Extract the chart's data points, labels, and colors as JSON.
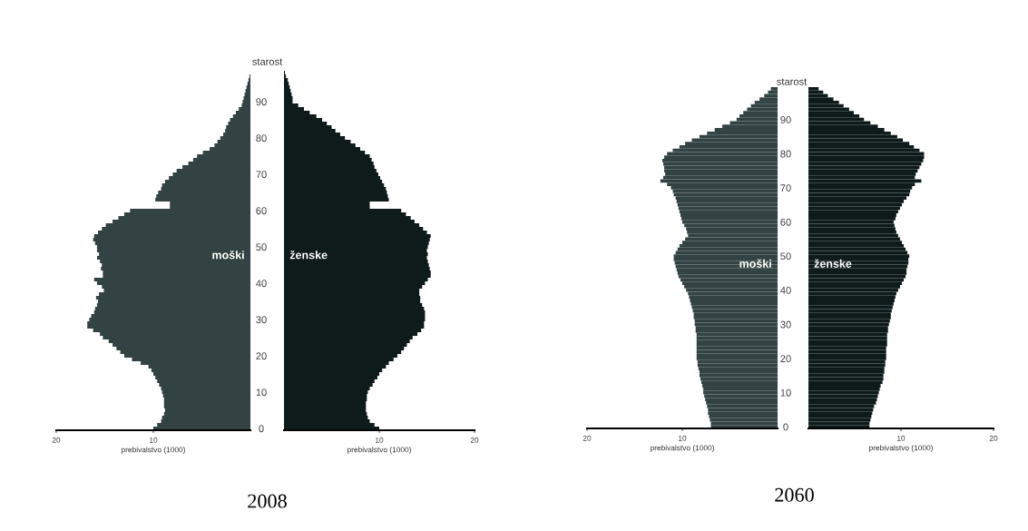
{
  "chart_data": [
    {
      "type": "bar",
      "orientation": "horizontal",
      "title": "2008",
      "xlabel": "prebivalstvo (1000)",
      "tick_labels": "x",
      "xlim": [
        20,
        0
      ],
      "xticks": [
        20,
        10
      ],
      "categories": [
        null,
        null,
        null,
        null,
        null,
        null,
        null,
        null,
        null,
        "90",
        null,
        null,
        null,
        null,
        null,
        null,
        null,
        null,
        null,
        "80",
        null,
        null,
        null,
        null,
        null,
        null,
        null,
        null,
        null,
        "70",
        null,
        null,
        null,
        null,
        null,
        null,
        null,
        null,
        null,
        "60",
        null,
        null,
        null,
        null,
        null,
        null,
        null,
        null,
        null,
        "50",
        null,
        null,
        null,
        null,
        null,
        null,
        null,
        null,
        null,
        "40",
        null,
        null,
        null,
        null,
        null,
        null,
        null,
        null,
        null,
        "30",
        null,
        null,
        null,
        null,
        null,
        null,
        null,
        null,
        null,
        "20",
        null,
        null,
        null,
        null,
        null,
        null,
        null,
        null,
        null,
        "10",
        null,
        null,
        null,
        null,
        null,
        null,
        null,
        null,
        null,
        "0"
      ],
      "series": [
        {
          "name": "moški",
          "color": "#334343",
          "values": [
            0,
            0,
            0.1,
            0.2,
            0.3,
            0.4,
            0.5,
            0.6,
            0.7,
            0.8,
            0.9,
            1.2,
            1.5,
            1.8,
            2.1,
            2.3,
            2.5,
            2.6,
            2.8,
            3.1,
            3.4,
            3.7,
            4.2,
            4.9,
            5.5,
            5.9,
            6.4,
            7,
            7.6,
            8,
            8.4,
            8.8,
            9.1,
            9.2,
            9.5,
            9.7,
            9.8,
            8.3,
            8.3,
            12.4,
            13,
            13.6,
            14.2,
            14.9,
            15.3,
            15.7,
            16.1,
            16.2,
            16,
            15.8,
            15.8,
            15.6,
            15.8,
            15.5,
            15.3,
            15.4,
            15.2,
            15.2,
            16.1,
            15.8,
            15.3,
            15.1,
            15.6,
            15.9,
            15.7,
            15.8,
            16,
            16.1,
            16.4,
            16.6,
            16.8,
            16.8,
            16.2,
            15.5,
            15.2,
            14.6,
            14.2,
            13.8,
            13.4,
            13,
            12.2,
            11.3,
            10.5,
            10.2,
            10,
            9.8,
            9.6,
            9.4,
            9.2,
            9.1,
            9,
            8.9,
            8.9,
            8.9,
            8.8,
            8.9,
            9.1,
            9.2,
            9.6,
            10
          ]
        }
      ]
    },
    {
      "type": "bar",
      "orientation": "horizontal",
      "xlabel": "prebivalstvo (1000)",
      "ylabel": "starost",
      "xlim": [
        0,
        20
      ],
      "xticks": [
        10,
        20
      ],
      "categories": [
        null,
        null,
        null,
        null,
        null,
        null,
        null,
        null,
        null,
        "90",
        null,
        null,
        null,
        null,
        null,
        null,
        null,
        null,
        null,
        "80",
        null,
        null,
        null,
        null,
        null,
        null,
        null,
        null,
        null,
        "70",
        null,
        null,
        null,
        null,
        null,
        null,
        null,
        null,
        null,
        "60",
        null,
        null,
        null,
        null,
        null,
        null,
        null,
        null,
        null,
        "50",
        null,
        null,
        null,
        null,
        null,
        null,
        null,
        null,
        null,
        "40",
        null,
        null,
        null,
        null,
        null,
        null,
        null,
        null,
        null,
        "30",
        null,
        null,
        null,
        null,
        null,
        null,
        null,
        null,
        null,
        "20",
        null,
        null,
        null,
        null,
        null,
        null,
        null,
        null,
        null,
        "10",
        null,
        null,
        null,
        null,
        null,
        null,
        null,
        null,
        null,
        "0"
      ],
      "series": [
        {
          "name": "ženske",
          "color": "#0f1b1b",
          "values": [
            0,
            0.1,
            0.2,
            0.4,
            0.5,
            0.6,
            0.7,
            0.8,
            0.9,
            0.9,
            1.5,
            2.1,
            2.7,
            3.4,
            4,
            4.5,
            5,
            5.4,
            5.9,
            6.4,
            7,
            7.5,
            8,
            8.5,
            9,
            9.2,
            9.4,
            9.5,
            9.7,
            9.9,
            10.1,
            10.3,
            10.5,
            10.7,
            10.8,
            10.9,
            11,
            9,
            9,
            12.3,
            12.8,
            13.3,
            13.7,
            14.2,
            14.6,
            15,
            15.4,
            15.3,
            15.2,
            15.1,
            15,
            15.1,
            15,
            15.1,
            15.2,
            15.3,
            15.4,
            15.4,
            15.1,
            14.8,
            14.5,
            14.2,
            14.2,
            14.3,
            14.3,
            14.5,
            14.7,
            14.8,
            14.8,
            14.8,
            14.7,
            14.7,
            14.4,
            14,
            13.5,
            13.2,
            12.9,
            12.6,
            12.3,
            11.9,
            11.5,
            11,
            10.7,
            10.3,
            10,
            9.8,
            9.5,
            9.3,
            9,
            8.8,
            8.7,
            8.7,
            8.6,
            8.6,
            8.6,
            8.7,
            8.8,
            9,
            9.5,
            10
          ]
        }
      ]
    },
    {
      "type": "bar",
      "orientation": "horizontal",
      "title": "2060",
      "xlabel": "prebivalstvo (1000)",
      "tick_labels": "x",
      "xlim": [
        20,
        0
      ],
      "xticks": [
        20,
        10
      ],
      "categories": [
        null,
        null,
        null,
        null,
        null,
        null,
        null,
        null,
        null,
        "90",
        null,
        null,
        null,
        null,
        null,
        null,
        null,
        null,
        null,
        "80",
        null,
        null,
        null,
        null,
        null,
        null,
        null,
        null,
        null,
        "70",
        null,
        null,
        null,
        null,
        null,
        null,
        null,
        null,
        null,
        "60",
        null,
        null,
        null,
        null,
        null,
        null,
        null,
        null,
        null,
        "50",
        null,
        null,
        null,
        null,
        null,
        null,
        null,
        null,
        null,
        "40",
        null,
        null,
        null,
        null,
        null,
        null,
        null,
        null,
        null,
        "30",
        null,
        null,
        null,
        null,
        null,
        null,
        null,
        null,
        null,
        "20",
        null,
        null,
        null,
        null,
        null,
        null,
        null,
        null,
        null,
        "10",
        null,
        null,
        null,
        null,
        null,
        null,
        null,
        null,
        null,
        "0"
      ],
      "series": [
        {
          "name": "moški",
          "color": "#334343",
          "values": [
            0.7,
            1,
            1.4,
            1.9,
            2.4,
            2.8,
            3.2,
            3.6,
            4,
            4.3,
            5,
            5.8,
            6.6,
            7.4,
            8.2,
            9,
            9.7,
            10.3,
            11,
            11.6,
            11.9,
            12.1,
            12,
            11.9,
            11.9,
            11.8,
            12,
            12.3,
            11.6,
            11.2,
            11,
            10.9,
            10.7,
            10.6,
            10.5,
            10.4,
            10.3,
            10.2,
            10.1,
            10,
            9.8,
            9.6,
            9.5,
            9.4,
            9.7,
            10,
            10.3,
            10.5,
            10.7,
            10.9,
            10.9,
            10.8,
            10.7,
            10.6,
            10.5,
            10.4,
            10.2,
            10,
            9.8,
            9.6,
            9.4,
            9.3,
            9.2,
            9.1,
            9,
            8.9,
            8.8,
            8.8,
            8.7,
            8.7,
            8.6,
            8.6,
            8.5,
            8.5,
            8.5,
            8.5,
            8.5,
            8.5,
            8.5,
            8.5,
            8.4,
            8.4,
            8.3,
            8.2,
            8.2,
            8.1,
            8,
            7.9,
            7.8,
            7.8,
            7.7,
            7.6,
            7.5,
            7.4,
            7.3,
            7.3,
            7.2,
            7.1,
            7,
            7
          ]
        }
      ]
    },
    {
      "type": "bar",
      "orientation": "horizontal",
      "xlabel": "prebivalstvo (1000)",
      "ylabel": "starost",
      "xlim": [
        0,
        20
      ],
      "xticks": [
        10,
        20
      ],
      "categories": [
        null,
        null,
        null,
        null,
        null,
        null,
        null,
        null,
        null,
        "90",
        null,
        null,
        null,
        null,
        null,
        null,
        null,
        null,
        null,
        "80",
        null,
        null,
        null,
        null,
        null,
        null,
        null,
        null,
        null,
        "70",
        null,
        null,
        null,
        null,
        null,
        null,
        null,
        null,
        null,
        "60",
        null,
        null,
        null,
        null,
        null,
        null,
        null,
        null,
        null,
        "50",
        null,
        null,
        null,
        null,
        null,
        null,
        null,
        null,
        null,
        "40",
        null,
        null,
        null,
        null,
        null,
        null,
        null,
        null,
        null,
        "30",
        null,
        null,
        null,
        null,
        null,
        null,
        null,
        null,
        null,
        "20",
        null,
        null,
        null,
        null,
        null,
        null,
        null,
        null,
        null,
        "10",
        null,
        null,
        null,
        null,
        null,
        null,
        null,
        null,
        null,
        "0"
      ],
      "series": [
        {
          "name": "ženske",
          "color": "#0f1b1b",
          "values": [
            1.1,
            1.6,
            2.1,
            2.7,
            3.3,
            3.8,
            4.4,
            4.9,
            5.5,
            6,
            6.7,
            7.5,
            8.2,
            8.9,
            9.6,
            10.2,
            10.9,
            11.4,
            12,
            12.5,
            12.5,
            12.4,
            12.2,
            12,
            11.8,
            11.6,
            11.5,
            12.2,
            11.5,
            11.2,
            11,
            10.9,
            10.6,
            10.3,
            10.1,
            9.9,
            9.7,
            9.5,
            9.4,
            9.2,
            9.3,
            9.4,
            9.5,
            9.7,
            9.9,
            10.1,
            10.3,
            10.5,
            10.7,
            10.9,
            10.8,
            10.8,
            10.7,
            10.6,
            10.6,
            10.5,
            10.3,
            10.1,
            9.9,
            9.7,
            9.5,
            9.4,
            9.3,
            9.2,
            9.1,
            9,
            8.9,
            8.9,
            8.8,
            8.7,
            8.6,
            8.6,
            8.5,
            8.5,
            8.5,
            8.5,
            8.4,
            8.4,
            8.4,
            8.4,
            8.3,
            8.3,
            8.2,
            8.2,
            8.1,
            8.1,
            8,
            7.8,
            7.7,
            7.6,
            7.5,
            7.4,
            7.3,
            7.1,
            7,
            6.9,
            6.8,
            6.7,
            6.6,
            6.6
          ]
        }
      ]
    }
  ]
}
